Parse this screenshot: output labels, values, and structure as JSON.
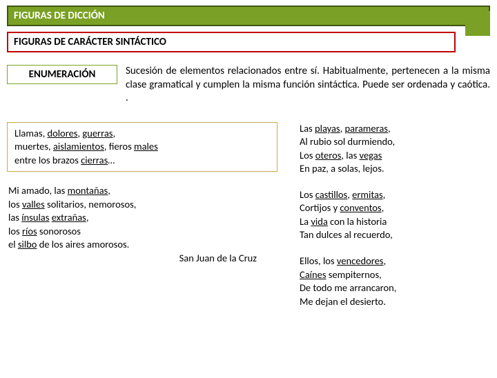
{
  "header": {
    "main": "FIGURAS DE DICCIÓN",
    "sub": "FIGURAS DE CARÁCTER SINTÁCTICO"
  },
  "term": "ENUMERACIÓN",
  "definition": "Sucesión de elementos relacionados entre sí. Habitualmente, pertenecen a la misma clase gramatical y cumplen la misma función sintáctica. Puede ser ordenada y caótica. .",
  "ex1": {
    "l1a": "Llamas, ",
    "l1b": "dolores",
    "l1c": ", ",
    "l1d": "guerras",
    "l1e": ",",
    "l2a": "muertes, ",
    "l2b": "aislamientos",
    "l2c": ", fieros ",
    "l2d": "males",
    "l3a": "entre los brazos ",
    "l3b": "cierras",
    "l3c": "…"
  },
  "ex2": {
    "l1a": "Mi amado, las ",
    "l1b": "montañas",
    "l1c": ",",
    "l2a": "los ",
    "l2b": "valles",
    "l2c": " solitarios, nemorosos,",
    "l3a": "las ",
    "l3b": "ínsulas",
    "l3c": " ",
    "l3d": "extrañas",
    "l3e": ",",
    "l4a": "los ",
    "l4b": "ríos",
    "l4c": " sonorosos",
    "l5a": "el ",
    "l5b": "silbo",
    "l5c": " de los aires amorosos.",
    "attr": "San Juan de la Cruz"
  },
  "ex3": {
    "l1a": "Las ",
    "l1b": "playas",
    "l1c": ", ",
    "l1d": "parameras",
    "l1e": ",",
    "l2": "Al rubio sol durmiendo,",
    "l3a": "Los ",
    "l3b": "oteros",
    "l3c": ", las ",
    "l3d": "vegas",
    "l4": "En paz, a solas, lejos."
  },
  "ex4": {
    "l1a": "Los ",
    "l1b": "castillos",
    "l1c": ", ",
    "l1d": "ermitas",
    "l1e": ",",
    "l2a": "Cortijos y ",
    "l2b": "conventos",
    "l2c": ",",
    "l3a": "La ",
    "l3b": "vida",
    "l3c": " con la historia",
    "l4": "Tan dulces al recuerdo,"
  },
  "ex5": {
    "l1a": "Ellos, los ",
    "l1b": "vencedores",
    "l1c": ",",
    "l2a": "Caínes",
    "l2b": " sempiternos,",
    "l3": "De todo me arrancaron,",
    "l4": "Me dejan el desierto."
  }
}
